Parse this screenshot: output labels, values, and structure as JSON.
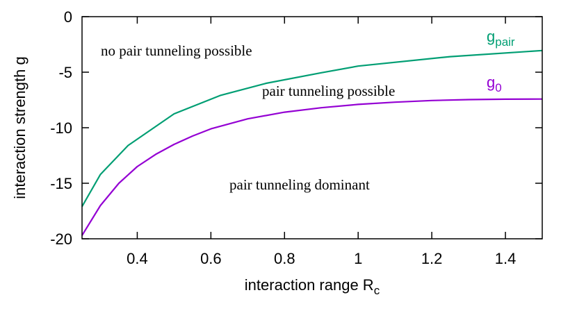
{
  "chart_data": {
    "type": "line",
    "title": "",
    "xlabel": {
      "main": "interaction range R",
      "sub": "c"
    },
    "ylabel": "interaction strength g",
    "xlim": [
      0.25,
      1.5
    ],
    "ylim": [
      -20,
      0
    ],
    "xticks": [
      {
        "value": 0.4,
        "label": "0.4"
      },
      {
        "value": 0.6,
        "label": "0.6"
      },
      {
        "value": 0.8,
        "label": "0.8"
      },
      {
        "value": 1.0,
        "label": "1"
      },
      {
        "value": 1.2,
        "label": "1.2"
      },
      {
        "value": 1.4,
        "label": "1.4"
      }
    ],
    "yticks": [
      {
        "value": 0,
        "label": "0"
      },
      {
        "value": -5,
        "label": "-5"
      },
      {
        "value": -10,
        "label": "-10"
      },
      {
        "value": -15,
        "label": "-15"
      },
      {
        "value": -20,
        "label": "-20"
      }
    ],
    "grid": false,
    "series": [
      {
        "name": {
          "main": "g",
          "sub": "pair"
        },
        "color": "#009e73",
        "x": [
          0.25,
          0.3,
          0.375,
          0.5,
          0.625,
          0.75,
          0.9,
          1.0,
          1.25,
          1.5
        ],
        "y": [
          -17.1,
          -14.2,
          -11.6,
          -8.75,
          -7.1,
          -6.0,
          -5.05,
          -4.45,
          -3.6,
          -3.05
        ]
      },
      {
        "name": {
          "main": "g",
          "sub": "0"
        },
        "color": "#9400d3",
        "x": [
          0.25,
          0.3,
          0.35,
          0.4,
          0.45,
          0.5,
          0.55,
          0.6,
          0.7,
          0.8,
          0.9,
          1.0,
          1.1,
          1.2,
          1.3,
          1.4,
          1.5
        ],
        "y": [
          -19.7,
          -17.0,
          -15.0,
          -13.5,
          -12.4,
          -11.5,
          -10.75,
          -10.1,
          -9.2,
          -8.6,
          -8.2,
          -7.9,
          -7.7,
          -7.55,
          -7.47,
          -7.43,
          -7.42
        ]
      }
    ],
    "annotations": [
      "no pair tunneling possible",
      "pair tunneling possible",
      "pair tunneling dominant"
    ]
  }
}
